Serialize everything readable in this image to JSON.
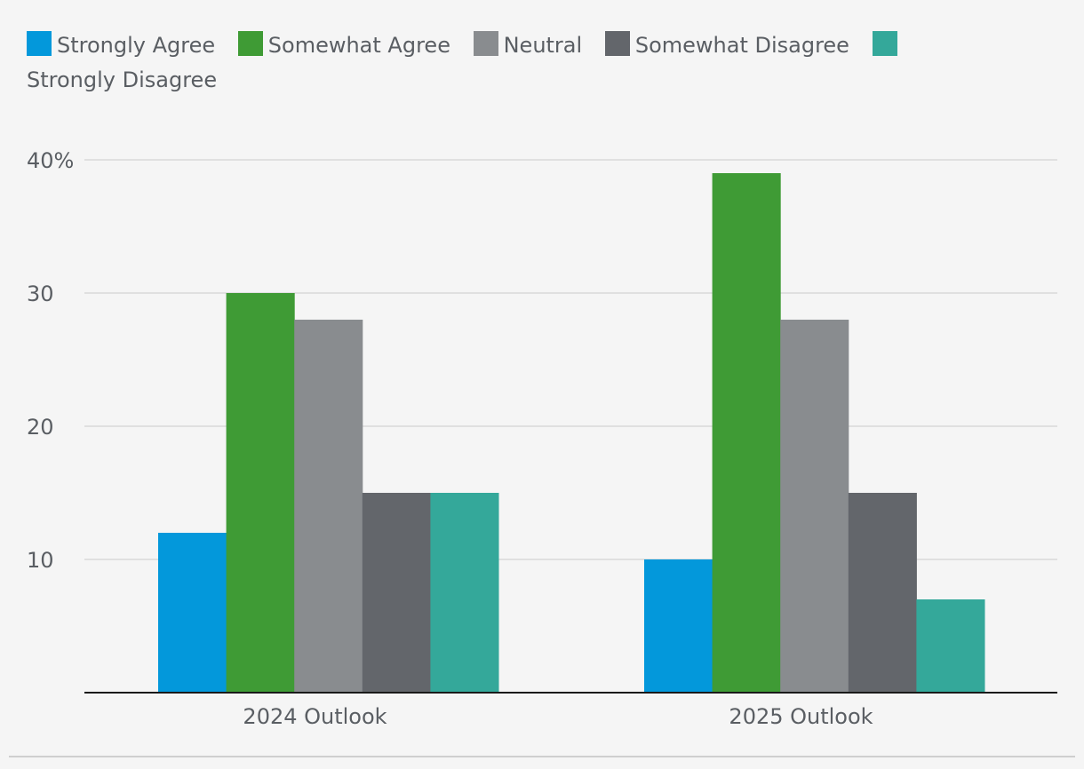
{
  "chart_data": {
    "type": "bar",
    "title": "",
    "xlabel": "",
    "ylabel": "",
    "ylim": [
      0,
      40
    ],
    "yticks": [
      10,
      20,
      30,
      40
    ],
    "ytick_labels": [
      "10",
      "20",
      "30",
      "40%"
    ],
    "grid": true,
    "legend_position": "top-left",
    "categories": [
      "2024 Outlook",
      "2025 Outlook"
    ],
    "series": [
      {
        "name": "Strongly Agree",
        "color": "#0398db",
        "values": [
          12,
          10
        ]
      },
      {
        "name": "Somewhat Agree",
        "color": "#3f9b35",
        "values": [
          30,
          39
        ]
      },
      {
        "name": "Neutral",
        "color": "#898c8f",
        "values": [
          28,
          28
        ]
      },
      {
        "name": "Somewhat Disagree",
        "color": "#63666b",
        "values": [
          15,
          15
        ]
      },
      {
        "name": "Strongly Disagree",
        "color": "#34a89a",
        "values": [
          15,
          7
        ]
      }
    ]
  }
}
